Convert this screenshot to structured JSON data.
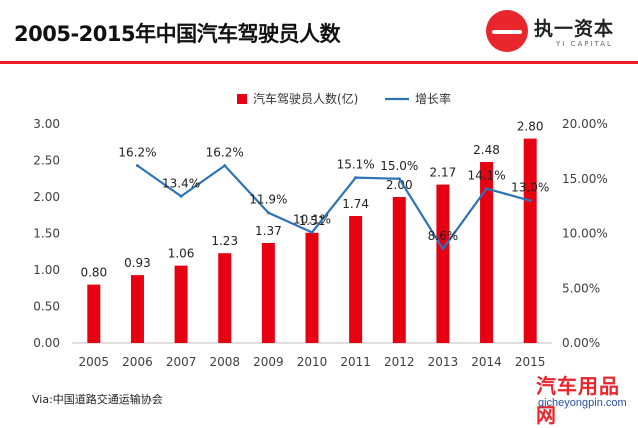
{
  "title": "2005-2015年中国汽车驾驶员人数",
  "logo": {
    "name": "执一资本",
    "subtitle": "YI CAPITAL"
  },
  "source": "Via:中国道路交通运输协会",
  "watermark": {
    "text": "汽车用品网",
    "url": "qicheyongpin.com"
  },
  "colors": {
    "bar": "#e60012",
    "line": "#2e74b5",
    "accent": "#ee1c25"
  },
  "chart_data": {
    "type": "bar",
    "categories": [
      "2005",
      "2006",
      "2007",
      "2008",
      "2009",
      "2010",
      "2011",
      "2012",
      "2013",
      "2014",
      "2015"
    ],
    "series": [
      {
        "name": "汽车驾驶员人数(亿)",
        "type": "bar",
        "axis": "left",
        "values": [
          0.8,
          0.93,
          1.06,
          1.23,
          1.37,
          1.51,
          1.74,
          2.0,
          2.17,
          2.48,
          2.8
        ],
        "labels": [
          "0.80",
          "0.93",
          "1.06",
          "1.23",
          "1.37",
          "1.51",
          "1.74",
          "2.00",
          "2.17",
          "2.48",
          "2.80"
        ]
      },
      {
        "name": "增长率",
        "type": "line",
        "axis": "right",
        "values": [
          null,
          16.2,
          13.4,
          16.2,
          11.9,
          10.1,
          15.1,
          15.0,
          8.6,
          14.1,
          13.0
        ],
        "labels": [
          "",
          "16.2%",
          "13.4%",
          "16.2%",
          "11.9%",
          "10.1%",
          "15.1%",
          "15.0%",
          "8.6%",
          "14.1%",
          "13.0%"
        ]
      }
    ],
    "y_left": {
      "min": 0,
      "max": 3,
      "ticks": [
        "0.00",
        "0.50",
        "1.00",
        "1.50",
        "2.00",
        "2.50",
        "3.00"
      ]
    },
    "y_right": {
      "min": 0,
      "max": 20,
      "ticks": [
        "0.00%",
        "5.00%",
        "10.00%",
        "15.00%",
        "20.00%"
      ]
    },
    "legend_position": "top",
    "grid": false
  }
}
